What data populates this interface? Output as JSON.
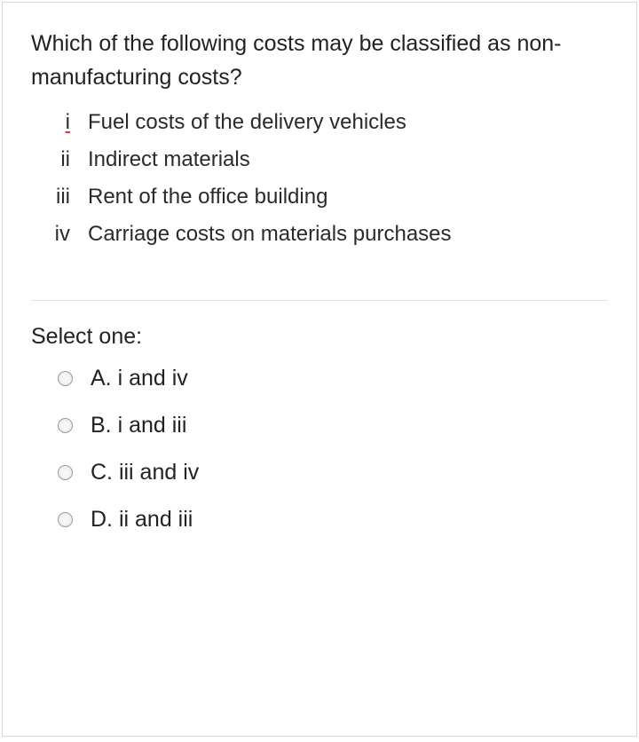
{
  "question": "Which of the following costs may be classified as non-manufacturing costs?",
  "roman_items": [
    {
      "numeral": "i",
      "text": "Fuel costs of the delivery vehicles",
      "underline": true
    },
    {
      "numeral": "ii",
      "text": "Indirect materials",
      "underline": false
    },
    {
      "numeral": "iii",
      "text": "Rent of the office building",
      "underline": false
    },
    {
      "numeral": "iv",
      "text": "Carriage costs on materials purchases",
      "underline": false
    }
  ],
  "select_label": "Select one:",
  "options": [
    {
      "letter": "A.",
      "text": "i and iv"
    },
    {
      "letter": "B.",
      "text": "i and iii"
    },
    {
      "letter": "C.",
      "text": "iii and iv"
    },
    {
      "letter": "D.",
      "text": "ii and iii"
    }
  ],
  "colors": {
    "border": "#d8d8d8",
    "text": "#222222",
    "separator": "#e2e2e2",
    "underline": "#d43b3b"
  }
}
